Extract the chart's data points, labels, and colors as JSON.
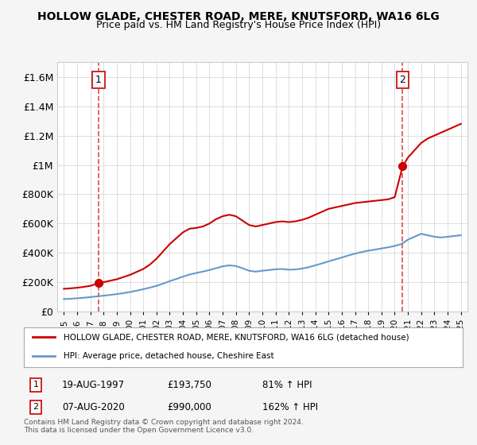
{
  "title": "HOLLOW GLADE, CHESTER ROAD, MERE, KNUTSFORD, WA16 6LG",
  "subtitle": "Price paid vs. HM Land Registry's House Price Index (HPI)",
  "legend_line1": "HOLLOW GLADE, CHESTER ROAD, MERE, KNUTSFORD, WA16 6LG (detached house)",
  "legend_line2": "HPI: Average price, detached house, Cheshire East",
  "footer": "Contains HM Land Registry data © Crown copyright and database right 2024.\nThis data is licensed under the Open Government Licence v3.0.",
  "sale1_label": "1",
  "sale1_date": "19-AUG-1997",
  "sale1_price": "£193,750",
  "sale1_hpi": "81% ↑ HPI",
  "sale1_year": 1997.63,
  "sale1_value": 193750,
  "sale2_label": "2",
  "sale2_date": "07-AUG-2020",
  "sale2_price": "£990,000",
  "sale2_hpi": "162% ↑ HPI",
  "sale2_year": 2020.6,
  "sale2_value": 990000,
  "red_color": "#cc0000",
  "blue_color": "#6699cc",
  "background_color": "#f5f5f5",
  "plot_bg_color": "#ffffff",
  "ylim": [
    0,
    1700000
  ],
  "xlim": [
    1994.5,
    2025.5
  ],
  "red_x": [
    1995.0,
    1995.5,
    1996.0,
    1996.5,
    1997.0,
    1997.63,
    1998.0,
    1998.5,
    1999.0,
    1999.5,
    2000.0,
    2000.5,
    2001.0,
    2001.5,
    2002.0,
    2002.5,
    2003.0,
    2003.5,
    2004.0,
    2004.5,
    2005.0,
    2005.5,
    2006.0,
    2006.5,
    2007.0,
    2007.5,
    2008.0,
    2008.5,
    2009.0,
    2009.5,
    2010.0,
    2010.5,
    2011.0,
    2011.5,
    2012.0,
    2012.5,
    2013.0,
    2013.5,
    2014.0,
    2014.5,
    2015.0,
    2015.5,
    2016.0,
    2016.5,
    2017.0,
    2017.5,
    2018.0,
    2018.5,
    2019.0,
    2019.5,
    2020.0,
    2020.6,
    2021.0,
    2021.5,
    2022.0,
    2022.5,
    2023.0,
    2023.5,
    2024.0,
    2024.5,
    2025.0
  ],
  "red_y": [
    155000,
    158000,
    162000,
    168000,
    175000,
    193750,
    200000,
    210000,
    220000,
    235000,
    250000,
    270000,
    290000,
    320000,
    360000,
    410000,
    460000,
    500000,
    540000,
    565000,
    570000,
    580000,
    600000,
    630000,
    650000,
    660000,
    650000,
    620000,
    590000,
    580000,
    590000,
    600000,
    610000,
    615000,
    610000,
    615000,
    625000,
    640000,
    660000,
    680000,
    700000,
    710000,
    720000,
    730000,
    740000,
    745000,
    750000,
    755000,
    760000,
    765000,
    780000,
    990000,
    1050000,
    1100000,
    1150000,
    1180000,
    1200000,
    1220000,
    1240000,
    1260000,
    1280000
  ],
  "blue_x": [
    1995.0,
    1995.5,
    1996.0,
    1996.5,
    1997.0,
    1997.5,
    1998.0,
    1998.5,
    1999.0,
    1999.5,
    2000.0,
    2000.5,
    2001.0,
    2001.5,
    2002.0,
    2002.5,
    2003.0,
    2003.5,
    2004.0,
    2004.5,
    2005.0,
    2005.5,
    2006.0,
    2006.5,
    2007.0,
    2007.5,
    2008.0,
    2008.5,
    2009.0,
    2009.5,
    2010.0,
    2010.5,
    2011.0,
    2011.5,
    2012.0,
    2012.5,
    2013.0,
    2013.5,
    2014.0,
    2014.5,
    2015.0,
    2015.5,
    2016.0,
    2016.5,
    2017.0,
    2017.5,
    2018.0,
    2018.5,
    2019.0,
    2019.5,
    2020.0,
    2020.5,
    2021.0,
    2021.5,
    2022.0,
    2022.5,
    2023.0,
    2023.5,
    2024.0,
    2024.5,
    2025.0
  ],
  "blue_y": [
    85000,
    87000,
    90000,
    94000,
    98000,
    103000,
    108000,
    113000,
    119000,
    125000,
    133000,
    142000,
    152000,
    163000,
    175000,
    190000,
    207000,
    222000,
    238000,
    252000,
    263000,
    272000,
    283000,
    295000,
    308000,
    315000,
    310000,
    295000,
    278000,
    272000,
    278000,
    283000,
    288000,
    290000,
    285000,
    287000,
    293000,
    302000,
    315000,
    328000,
    342000,
    355000,
    368000,
    382000,
    395000,
    405000,
    415000,
    422000,
    430000,
    438000,
    447000,
    460000,
    490000,
    510000,
    530000,
    520000,
    510000,
    505000,
    510000,
    515000,
    520000
  ]
}
